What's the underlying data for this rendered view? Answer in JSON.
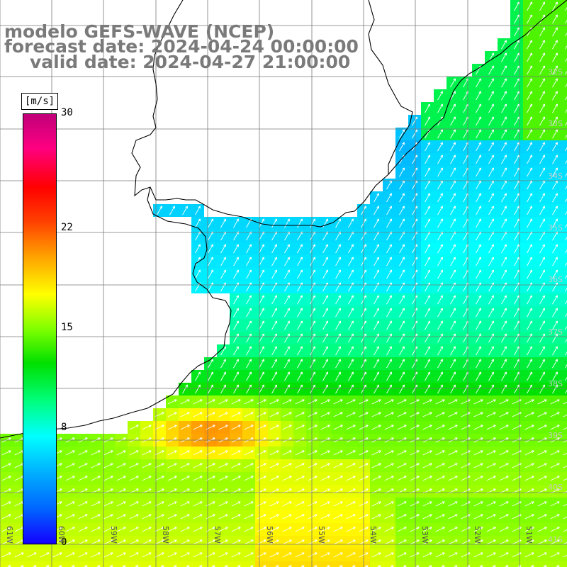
{
  "title": {
    "line1": "modelo GEFS-WAVE (NCEP)",
    "line2": "forecast date: 2024-04-24 00:00:00",
    "line3": "valid date: 2024-04-27 21:00:00"
  },
  "colorbar": {
    "units": "[m/s]",
    "ticks": [
      {
        "value": 30,
        "label": "30"
      },
      {
        "value": 22,
        "label": "22"
      },
      {
        "value": 15,
        "label": "15"
      },
      {
        "value": 8,
        "label": "8"
      },
      {
        "value": 0,
        "label": "0"
      }
    ],
    "colors": [
      "#1400ff",
      "#0064ff",
      "#00b4ff",
      "#00ffff",
      "#00ff80",
      "#00e000",
      "#80ff00",
      "#ffff00",
      "#ffa000",
      "#ff4000",
      "#ff0000",
      "#ff0080",
      "#c0007a"
    ]
  },
  "lat_labels": [
    "32S",
    "33S",
    "34S",
    "35S",
    "36S",
    "37S",
    "38S",
    "39S",
    "40S",
    "41S"
  ],
  "lon_labels": [
    "61W",
    "60W",
    "59W",
    "58W",
    "57W",
    "56W",
    "55W",
    "54W",
    "53W",
    "52W",
    "51W"
  ],
  "wind_field": {
    "units": "m/s",
    "region_notes": "wind speed field shading with direction arrows over ocean",
    "land_color": "#ffffff",
    "coast_color": "#000000"
  }
}
